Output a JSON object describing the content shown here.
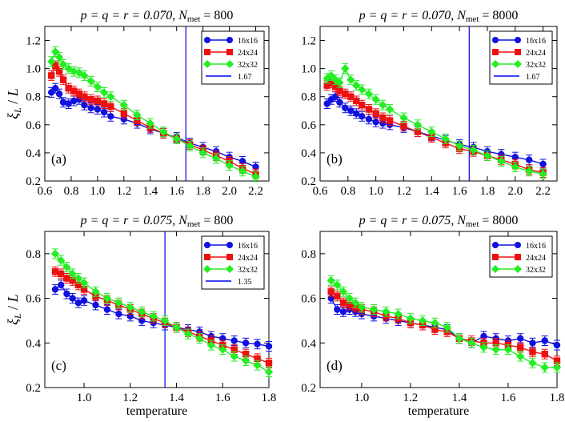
{
  "chart_data": [
    {
      "type": "scatter",
      "panel_tag": "(a)",
      "title_parts": {
        "prefix": "p = q = r = 0.070, ",
        "N": "N",
        "sub": "met",
        "suffix": " = 800"
      },
      "xlabel": "",
      "ylabel": "ξ_L / L",
      "xlim": [
        0.6,
        2.3
      ],
      "ylim": [
        0.2,
        1.3
      ],
      "xticks": [
        0.6,
        0.8,
        1.0,
        1.2,
        1.4,
        1.6,
        1.8,
        2.0,
        2.2
      ],
      "xtick_labels": [
        "0.6",
        "0.8",
        "1.0",
        "1.2",
        "1.4",
        "1.6",
        "1.8",
        "2.0",
        "2.2"
      ],
      "yticks": [
        0.2,
        0.4,
        0.6,
        0.8,
        1.0,
        1.2
      ],
      "ytick_labels": [
        "0.2",
        "0.4",
        "0.6",
        "0.8",
        "1.0",
        "1.2"
      ],
      "vline": {
        "x": 1.67,
        "label": "1.67",
        "color": "#0000ee"
      },
      "legend_position": "top-right",
      "series": [
        {
          "name": "16x16",
          "color": "#1010e0",
          "marker": "circle",
          "x": [
            0.65,
            0.68,
            0.71,
            0.74,
            0.78,
            0.82,
            0.86,
            0.9,
            0.95,
            1.0,
            1.05,
            1.1,
            1.2,
            1.3,
            1.4,
            1.5,
            1.6,
            1.7,
            1.8,
            1.9,
            2.0,
            2.1,
            2.2
          ],
          "y": [
            0.83,
            0.86,
            0.82,
            0.76,
            0.75,
            0.77,
            0.78,
            0.74,
            0.72,
            0.71,
            0.69,
            0.66,
            0.64,
            0.61,
            0.57,
            0.54,
            0.51,
            0.47,
            0.44,
            0.41,
            0.37,
            0.34,
            0.3
          ]
        },
        {
          "name": "24x24",
          "color": "#ee1010",
          "marker": "square",
          "x": [
            0.65,
            0.68,
            0.71,
            0.74,
            0.78,
            0.82,
            0.86,
            0.9,
            0.95,
            1.0,
            1.05,
            1.1,
            1.2,
            1.3,
            1.4,
            1.5,
            1.6,
            1.7,
            1.8,
            1.9,
            2.0,
            2.1,
            2.2
          ],
          "y": [
            0.95,
            1.02,
            0.98,
            0.92,
            0.86,
            0.84,
            0.82,
            0.8,
            0.78,
            0.77,
            0.75,
            0.73,
            0.68,
            0.63,
            0.58,
            0.54,
            0.5,
            0.46,
            0.42,
            0.38,
            0.34,
            0.29,
            0.25
          ]
        },
        {
          "name": "32x32",
          "color": "#22ee22",
          "marker": "diamond",
          "x": [
            0.65,
            0.68,
            0.71,
            0.74,
            0.78,
            0.82,
            0.86,
            0.9,
            0.95,
            1.0,
            1.05,
            1.1,
            1.2,
            1.3,
            1.4,
            1.5,
            1.6,
            1.7,
            1.8,
            1.9,
            2.0,
            2.1,
            2.2
          ],
          "y": [
            1.05,
            1.12,
            1.08,
            1.03,
            1.0,
            0.98,
            0.97,
            0.95,
            0.91,
            0.87,
            0.83,
            0.8,
            0.74,
            0.67,
            0.61,
            0.55,
            0.5,
            0.45,
            0.4,
            0.36,
            0.31,
            0.27,
            0.23
          ]
        }
      ]
    },
    {
      "type": "scatter",
      "panel_tag": "(b)",
      "title_parts": {
        "prefix": "p = q = r = 0.070, ",
        "N": "N",
        "sub": "met",
        "suffix": " = 8000"
      },
      "xlabel": "",
      "ylabel": "",
      "xlim": [
        0.6,
        2.3
      ],
      "ylim": [
        0.2,
        1.3
      ],
      "xticks": [
        0.6,
        0.8,
        1.0,
        1.2,
        1.4,
        1.6,
        1.8,
        2.0,
        2.2
      ],
      "xtick_labels": [
        "0.6",
        "0.8",
        "1.0",
        "1.2",
        "1.4",
        "1.6",
        "1.8",
        "2.0",
        "2.2"
      ],
      "yticks": [
        0.2,
        0.4,
        0.6,
        0.8,
        1.0,
        1.2
      ],
      "ytick_labels": [
        "0.2",
        "0.4",
        "0.6",
        "0.8",
        "1.0",
        "1.2"
      ],
      "vline": {
        "x": 1.67,
        "label": "1.67",
        "color": "#0000ee"
      },
      "legend_position": "top-right",
      "series": [
        {
          "name": "16x16",
          "color": "#1010e0",
          "marker": "circle",
          "x": [
            0.65,
            0.68,
            0.71,
            0.74,
            0.78,
            0.82,
            0.86,
            0.9,
            0.95,
            1.0,
            1.05,
            1.1,
            1.2,
            1.3,
            1.4,
            1.5,
            1.6,
            1.7,
            1.8,
            1.9,
            2.0,
            2.1,
            2.2
          ],
          "y": [
            0.75,
            0.78,
            0.8,
            0.76,
            0.72,
            0.7,
            0.68,
            0.66,
            0.64,
            0.62,
            0.61,
            0.6,
            0.58,
            0.55,
            0.52,
            0.49,
            0.46,
            0.44,
            0.41,
            0.39,
            0.37,
            0.35,
            0.32
          ]
        },
        {
          "name": "24x24",
          "color": "#ee1010",
          "marker": "square",
          "x": [
            0.65,
            0.68,
            0.71,
            0.74,
            0.78,
            0.82,
            0.86,
            0.9,
            0.95,
            1.0,
            1.05,
            1.1,
            1.2,
            1.3,
            1.4,
            1.5,
            1.6,
            1.7,
            1.8,
            1.9,
            2.0,
            2.1,
            2.2
          ],
          "y": [
            0.88,
            0.9,
            0.87,
            0.84,
            0.82,
            0.8,
            0.77,
            0.74,
            0.71,
            0.68,
            0.65,
            0.63,
            0.59,
            0.55,
            0.51,
            0.47,
            0.43,
            0.41,
            0.38,
            0.35,
            0.32,
            0.28,
            0.26
          ]
        },
        {
          "name": "32x32",
          "color": "#22ee22",
          "marker": "diamond",
          "x": [
            0.65,
            0.68,
            0.71,
            0.74,
            0.78,
            0.82,
            0.86,
            0.9,
            0.95,
            1.0,
            1.05,
            1.1,
            1.2,
            1.3,
            1.4,
            1.5,
            1.6,
            1.7,
            1.8,
            1.9,
            2.0,
            2.1,
            2.2
          ],
          "y": [
            0.93,
            0.95,
            0.92,
            0.9,
            1.0,
            0.92,
            0.88,
            0.85,
            0.82,
            0.78,
            0.74,
            0.71,
            0.65,
            0.6,
            0.55,
            0.5,
            0.45,
            0.42,
            0.38,
            0.34,
            0.3,
            0.27,
            0.25
          ]
        }
      ]
    },
    {
      "type": "scatter",
      "panel_tag": "(c)",
      "title_parts": {
        "prefix": "p = q = r = 0.075, ",
        "N": "N",
        "sub": "met",
        "suffix": " = 800"
      },
      "xlabel": "temperature",
      "ylabel": "ξ_L / L",
      "xlim": [
        0.83,
        1.8
      ],
      "ylim": [
        0.2,
        0.9
      ],
      "xticks": [
        1.0,
        1.2,
        1.4,
        1.6,
        1.8
      ],
      "xtick_labels": [
        "1.0",
        "1.2",
        "1.4",
        "1.6",
        "1.8"
      ],
      "yticks": [
        0.2,
        0.4,
        0.6,
        0.8
      ],
      "ytick_labels": [
        "0.2",
        "0.4",
        "0.6",
        "0.8"
      ],
      "vline": {
        "x": 1.35,
        "label": "1.35",
        "color": "#0000ee"
      },
      "legend_position": "top-right",
      "series": [
        {
          "name": "16x16",
          "color": "#1010e0",
          "marker": "circle",
          "x": [
            0.875,
            0.9,
            0.925,
            0.95,
            0.975,
            1.0,
            1.05,
            1.1,
            1.15,
            1.2,
            1.25,
            1.3,
            1.35,
            1.4,
            1.45,
            1.5,
            1.55,
            1.6,
            1.65,
            1.7,
            1.75,
            1.8
          ],
          "y": [
            0.64,
            0.66,
            0.62,
            0.6,
            0.58,
            0.59,
            0.57,
            0.55,
            0.53,
            0.52,
            0.5,
            0.49,
            0.48,
            0.47,
            0.46,
            0.45,
            0.43,
            0.42,
            0.41,
            0.4,
            0.395,
            0.385
          ]
        },
        {
          "name": "24x24",
          "color": "#ee1010",
          "marker": "square",
          "x": [
            0.875,
            0.9,
            0.925,
            0.95,
            0.975,
            1.0,
            1.05,
            1.1,
            1.15,
            1.2,
            1.25,
            1.3,
            1.35,
            1.4,
            1.45,
            1.5,
            1.55,
            1.6,
            1.65,
            1.7,
            1.75,
            1.8
          ],
          "y": [
            0.72,
            0.71,
            0.69,
            0.68,
            0.66,
            0.64,
            0.61,
            0.59,
            0.57,
            0.55,
            0.53,
            0.51,
            0.49,
            0.47,
            0.45,
            0.43,
            0.41,
            0.39,
            0.37,
            0.35,
            0.33,
            0.31
          ]
        },
        {
          "name": "32x32",
          "color": "#22ee22",
          "marker": "diamond",
          "x": [
            0.875,
            0.9,
            0.925,
            0.95,
            0.975,
            1.0,
            1.05,
            1.1,
            1.15,
            1.2,
            1.25,
            1.3,
            1.35,
            1.4,
            1.45,
            1.5,
            1.55,
            1.6,
            1.65,
            1.7,
            1.75,
            1.8
          ],
          "y": [
            0.8,
            0.77,
            0.74,
            0.71,
            0.69,
            0.67,
            0.63,
            0.6,
            0.58,
            0.56,
            0.54,
            0.52,
            0.5,
            0.47,
            0.44,
            0.42,
            0.39,
            0.37,
            0.34,
            0.32,
            0.3,
            0.27
          ]
        }
      ]
    },
    {
      "type": "scatter",
      "panel_tag": "(d)",
      "title_parts": {
        "prefix": "p = q = r = 0.075, ",
        "N": "N",
        "sub": "met",
        "suffix": " = 8000"
      },
      "xlabel": "temperature",
      "ylabel": "",
      "xlim": [
        0.83,
        1.8
      ],
      "ylim": [
        0.2,
        0.9
      ],
      "xticks": [
        1.0,
        1.2,
        1.4,
        1.6,
        1.8
      ],
      "xtick_labels": [
        "1.0",
        "1.2",
        "1.4",
        "1.6",
        "1.8"
      ],
      "yticks": [
        0.2,
        0.4,
        0.6,
        0.8
      ],
      "ytick_labels": [
        "0.2",
        "0.4",
        "0.6",
        "0.8"
      ],
      "vline": null,
      "legend_position": "top-right",
      "series": [
        {
          "name": "16x16",
          "color": "#1010e0",
          "marker": "circle",
          "x": [
            0.875,
            0.9,
            0.925,
            0.95,
            0.975,
            1.0,
            1.05,
            1.1,
            1.15,
            1.2,
            1.25,
            1.3,
            1.35,
            1.4,
            1.45,
            1.5,
            1.55,
            1.6,
            1.65,
            1.7,
            1.75,
            1.8
          ],
          "y": [
            0.6,
            0.55,
            0.54,
            0.55,
            0.54,
            0.53,
            0.52,
            0.51,
            0.5,
            0.49,
            0.48,
            0.47,
            0.46,
            0.42,
            0.4,
            0.43,
            0.42,
            0.41,
            0.42,
            0.4,
            0.41,
            0.39
          ]
        },
        {
          "name": "24x24",
          "color": "#ee1010",
          "marker": "square",
          "x": [
            0.875,
            0.9,
            0.925,
            0.95,
            0.975,
            1.0,
            1.05,
            1.1,
            1.15,
            1.2,
            1.25,
            1.3,
            1.35,
            1.4,
            1.45,
            1.5,
            1.55,
            1.6,
            1.65,
            1.7,
            1.75,
            1.8
          ],
          "y": [
            0.63,
            0.61,
            0.58,
            0.57,
            0.56,
            0.55,
            0.54,
            0.52,
            0.51,
            0.49,
            0.48,
            0.46,
            0.45,
            0.42,
            0.41,
            0.4,
            0.4,
            0.39,
            0.38,
            0.36,
            0.35,
            0.32
          ]
        },
        {
          "name": "32x32",
          "color": "#22ee22",
          "marker": "diamond",
          "x": [
            0.875,
            0.9,
            0.925,
            0.95,
            0.975,
            1.0,
            1.05,
            1.1,
            1.15,
            1.2,
            1.25,
            1.3,
            1.35,
            1.4,
            1.45,
            1.5,
            1.55,
            1.6,
            1.65,
            1.7,
            1.75,
            1.8
          ],
          "y": [
            0.68,
            0.66,
            0.63,
            0.6,
            0.58,
            0.56,
            0.55,
            0.54,
            0.53,
            0.51,
            0.5,
            0.49,
            0.47,
            0.42,
            0.4,
            0.38,
            0.37,
            0.37,
            0.34,
            0.31,
            0.29,
            0.29
          ]
        }
      ]
    }
  ]
}
